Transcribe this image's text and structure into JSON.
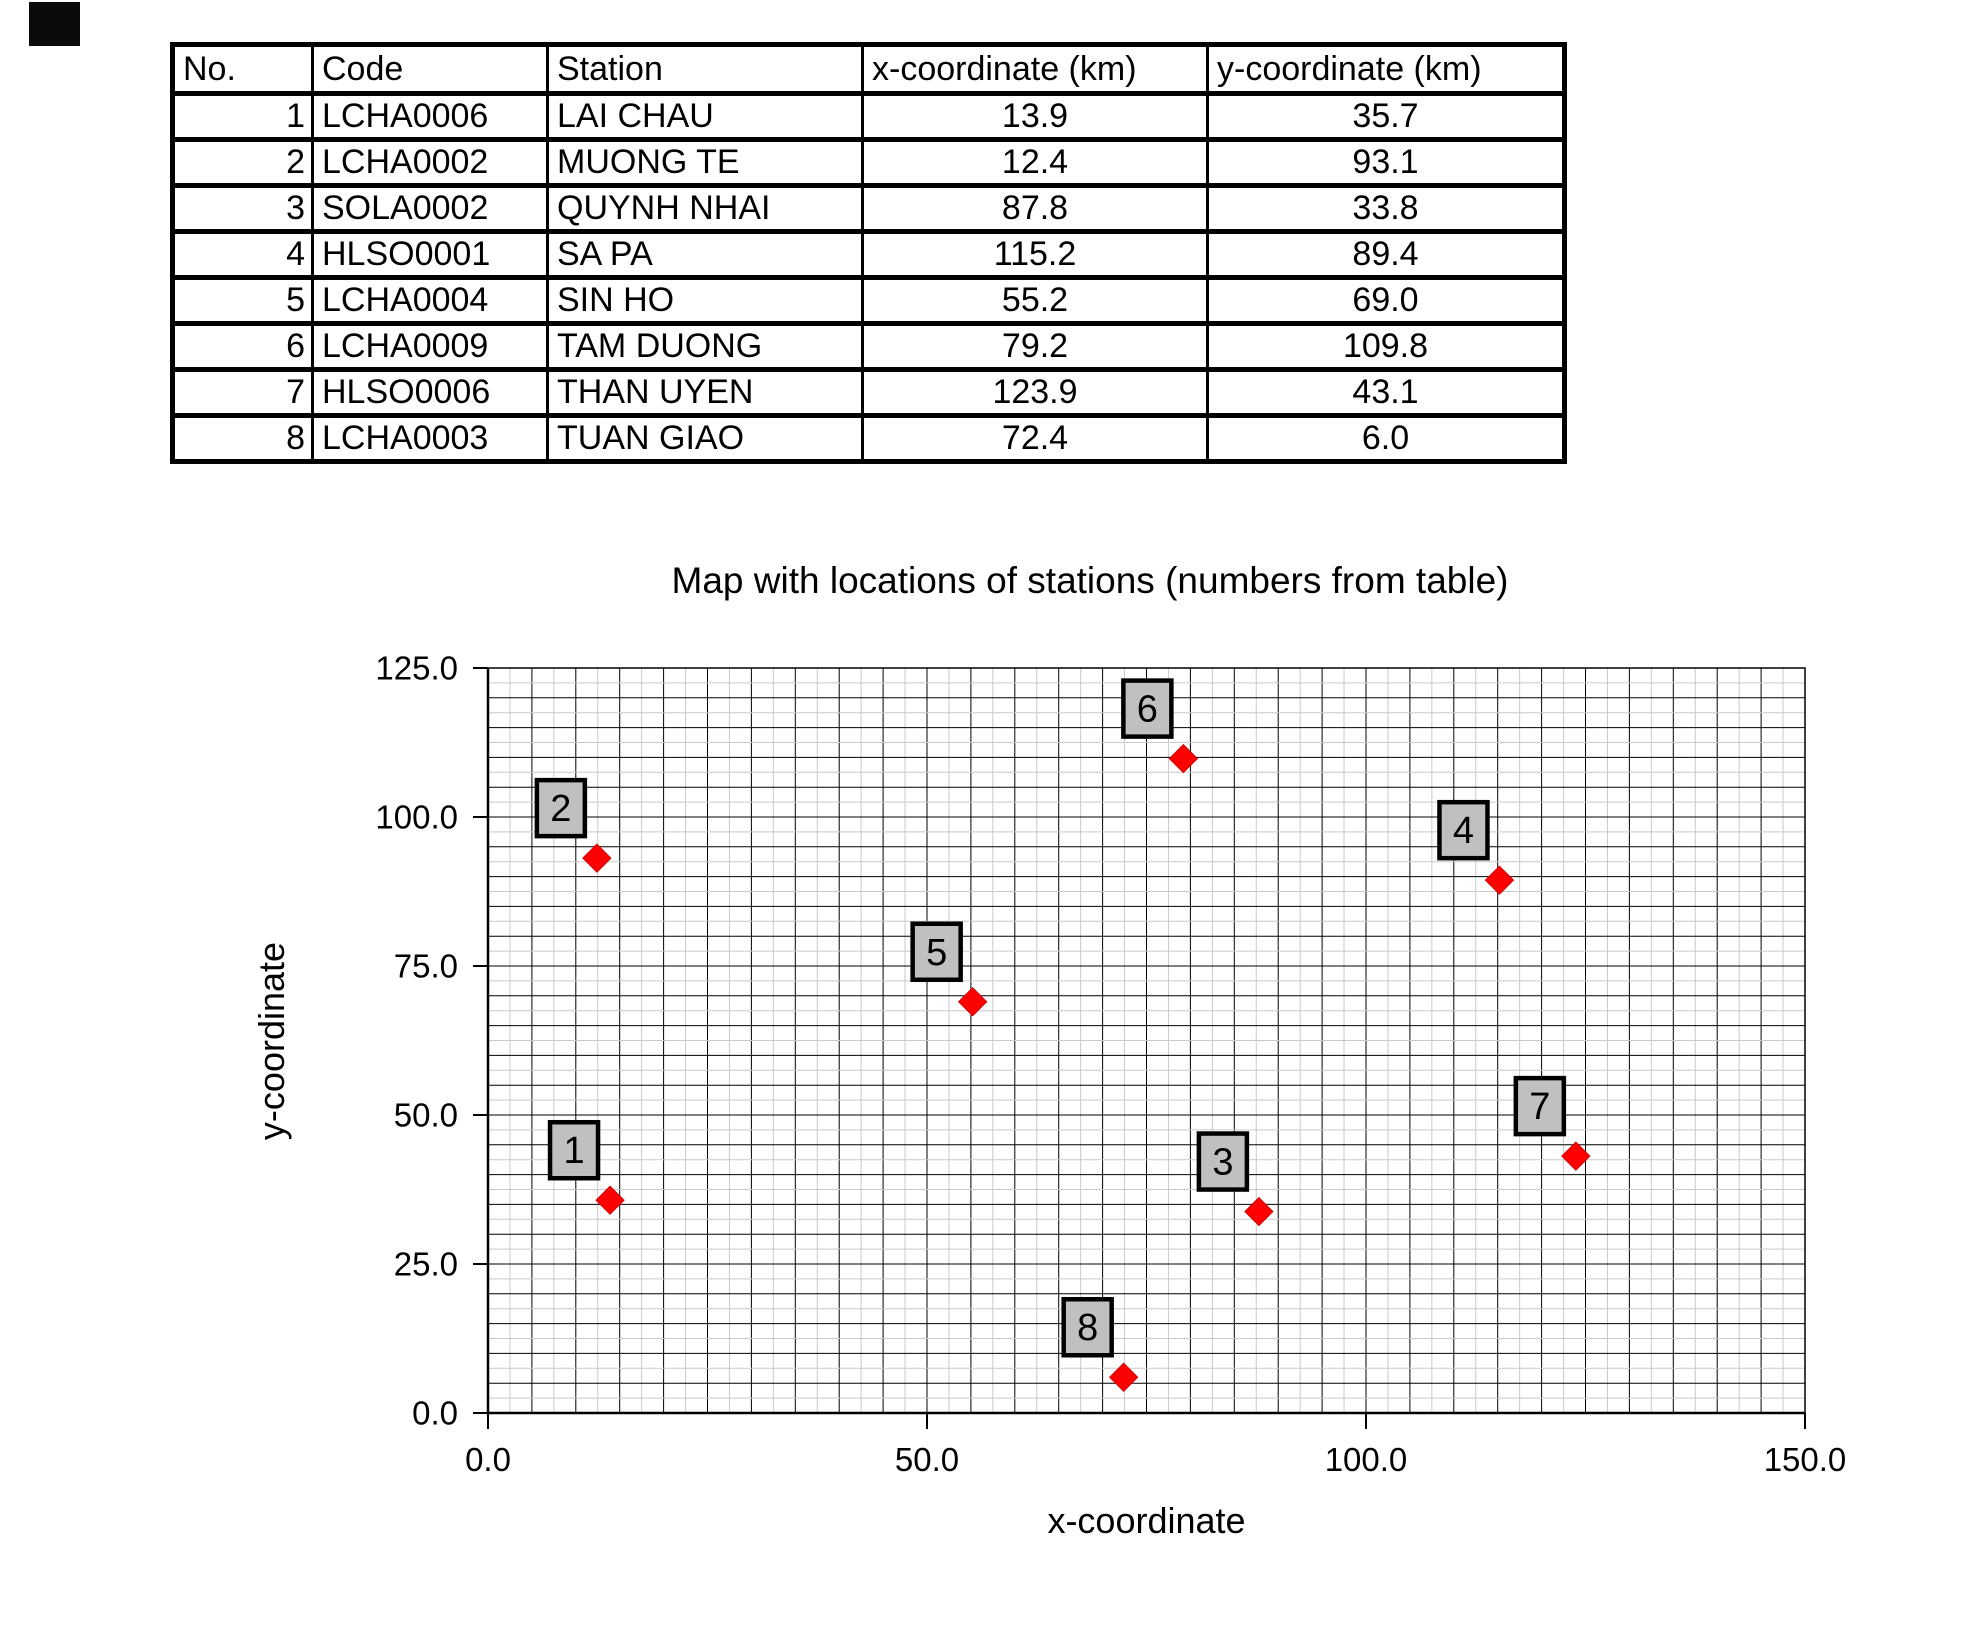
{
  "table": {
    "headers": [
      "No.",
      "Code",
      "Station",
      "x-coordinate (km)",
      "y-coordinate (km)"
    ],
    "rows": [
      [
        "1",
        "LCHA0006",
        "LAI CHAU",
        "13.9",
        "35.7"
      ],
      [
        "2",
        "LCHA0002",
        "MUONG TE",
        "12.4",
        "93.1"
      ],
      [
        "3",
        "SOLA0002",
        "QUYNH NHAI",
        "87.8",
        "33.8"
      ],
      [
        "4",
        "HLSO0001",
        "SA PA",
        "115.2",
        "89.4"
      ],
      [
        "5",
        "LCHA0004",
        "SIN HO",
        "55.2",
        "69.0"
      ],
      [
        "6",
        "LCHA0009",
        "TAM DUONG",
        "79.2",
        "109.8"
      ],
      [
        "7",
        "HLSO0006",
        "THAN UYEN",
        "123.9",
        "43.1"
      ],
      [
        "8",
        "LCHA0003",
        "TUAN GIAO",
        "72.4",
        "6.0"
      ]
    ]
  },
  "chart_data": {
    "type": "scatter",
    "title": "Map with locations of stations (numbers from table)",
    "xlabel": "x-coordinate",
    "ylabel": "y-coordinate",
    "xlim": [
      0,
      150
    ],
    "ylim": [
      0,
      125
    ],
    "x_ticks": [
      0,
      50,
      100,
      150
    ],
    "y_ticks": [
      0,
      25,
      50,
      75,
      100,
      125
    ],
    "tick_decimals": 1,
    "grid": "on",
    "grid_step_major": 5,
    "grid_step_minor": 2.5,
    "legend_position": "none",
    "marker_shape": "diamond",
    "marker_color": "#ff0000",
    "label_box_fill": "#c0c0c0",
    "label_box_border": "#000000",
    "points": [
      {
        "label": "1",
        "x": 13.9,
        "y": 35.7
      },
      {
        "label": "2",
        "x": 12.4,
        "y": 93.1
      },
      {
        "label": "3",
        "x": 87.8,
        "y": 33.8
      },
      {
        "label": "4",
        "x": 115.2,
        "y": 89.4
      },
      {
        "label": "5",
        "x": 55.2,
        "y": 69.0
      },
      {
        "label": "6",
        "x": 79.2,
        "y": 109.8
      },
      {
        "label": "7",
        "x": 123.9,
        "y": 43.1
      },
      {
        "label": "8",
        "x": 72.4,
        "y": 6.0
      }
    ]
  }
}
